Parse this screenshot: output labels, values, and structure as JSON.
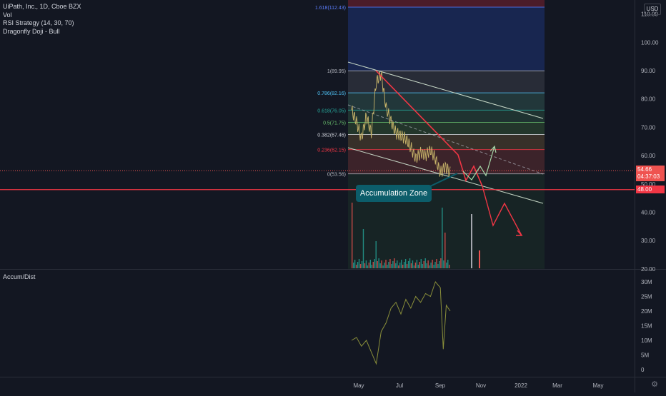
{
  "legend": {
    "symbol": "UiPath, Inc., 1D, Cboe BZX",
    "vol": "Vol",
    "rsi": "RSI Strategy (14, 30, 70)",
    "doji": "Dragonfly Doji - Bull"
  },
  "currency": "USD",
  "sub_pane_title": "Accum/Dist",
  "price_tags": {
    "last_price": "54.66",
    "countdown": "04:37:03",
    "level": "48.00"
  },
  "annotation": "Accumulation Zone",
  "colors": {
    "background": "#131722",
    "fib_upper": "#1e3a8a",
    "fib_red": "#f23645",
    "up": "#26a69a",
    "down": "#ef5350",
    "annotation": "#0c5d6a"
  },
  "chart_data": [
    {
      "type": "line",
      "name": "price",
      "y_ticks": [
        "110.00",
        "100.00",
        "90.00",
        "80.00",
        "70.00",
        "60.00",
        "50.00",
        "40.00",
        "30.00",
        "20.00"
      ],
      "x_ticks": [
        "May",
        "Jul",
        "Sep",
        "Nov",
        "2022",
        "Mar",
        "May"
      ],
      "ylim": [
        20,
        115
      ],
      "fib_levels": [
        {
          "label": "1.618(112.43)",
          "value": 112.43
        },
        {
          "label": "1(89.95)",
          "value": 89.95
        },
        {
          "label": "0.786(82.16)",
          "value": 82.16
        },
        {
          "label": "0.618(76.05)",
          "value": 76.05
        },
        {
          "label": "0.5(71.75)",
          "value": 71.75
        },
        {
          "label": "0.382(67.46)",
          "value": 67.46
        },
        {
          "label": "0.236(62.15)",
          "value": 62.15
        },
        {
          "label": "0(53.56)",
          "value": 53.56
        }
      ],
      "horizontal_level": 48.0,
      "last_price": 54.66,
      "series": [
        {
          "x": [
            0,
            0.05,
            0.1,
            0.15,
            0.2,
            0.25,
            0.3,
            0.35,
            0.4,
            0.45,
            0.5,
            0.55,
            0.6,
            0.65,
            0.7,
            0.75,
            0.8,
            0.85,
            0.9,
            0.95,
            1
          ],
          "values": [
            76,
            72,
            66,
            74,
            68,
            86,
            89,
            77,
            72,
            68,
            67,
            66,
            63,
            59,
            61,
            60,
            62,
            59,
            54,
            56,
            54
          ]
        }
      ]
    },
    {
      "type": "line",
      "name": "Accum/Dist",
      "y_ticks": [
        "30M",
        "25M",
        "20M",
        "15M",
        "10M",
        "5M",
        "0"
      ],
      "ylim": [
        0,
        32
      ],
      "series": [
        {
          "x": [
            0,
            0.05,
            0.1,
            0.15,
            0.2,
            0.25,
            0.3,
            0.35,
            0.4,
            0.45,
            0.5,
            0.55,
            0.6,
            0.65,
            0.7,
            0.75,
            0.8,
            0.85,
            0.9,
            0.93,
            0.96,
            1
          ],
          "values": [
            10,
            11,
            8,
            10,
            6,
            2,
            13,
            16,
            21,
            23,
            19,
            24,
            21,
            25,
            23,
            26,
            25,
            30,
            28,
            7,
            22,
            20
          ]
        }
      ]
    }
  ]
}
